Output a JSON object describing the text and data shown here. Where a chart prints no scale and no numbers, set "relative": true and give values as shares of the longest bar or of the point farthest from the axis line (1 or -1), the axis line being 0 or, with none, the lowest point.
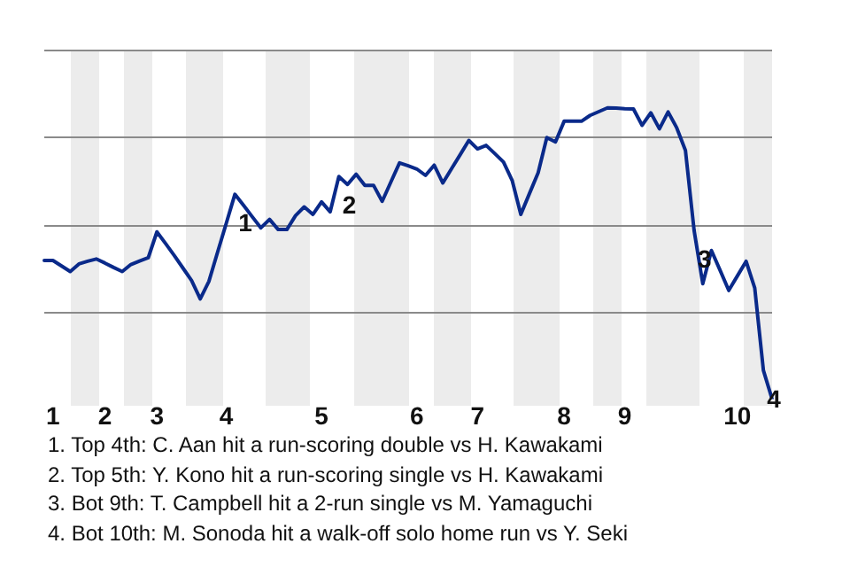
{
  "chart_data": {
    "type": "line",
    "relative": true,
    "grid": "y",
    "legend": false,
    "tick_labels": "x",
    "marker": "none",
    "line_style": "solid",
    "categories": [
      null,
      "1",
      null,
      null,
      null,
      null,
      null,
      "2",
      null,
      null,
      null,
      null,
      null,
      "3",
      null,
      null,
      null,
      null,
      null,
      null,
      null,
      "4",
      null,
      null,
      null,
      null,
      null,
      null,
      null,
      null,
      null,
      null,
      "5",
      null,
      null,
      null,
      null,
      null,
      null,
      null,
      null,
      null,
      null,
      "6",
      null,
      null,
      null,
      null,
      null,
      null,
      "7",
      null,
      null,
      null,
      null,
      null,
      null,
      null,
      null,
      null,
      "8",
      null,
      null,
      null,
      null,
      null,
      null,
      "9",
      null,
      null,
      null,
      null,
      null,
      null,
      null,
      null,
      null,
      null,
      null,
      null,
      "10",
      null,
      null,
      null,
      null
    ],
    "series": [
      {
        "color": "#0a2a8a",
        "values": [
          0.476,
          0.476,
          0.457,
          0.438,
          0.464,
          0.473,
          0.481,
          0.467,
          0.452,
          0.438,
          0.462,
          0.474,
          0.485,
          0.574,
          0.534,
          0.493,
          0.45,
          0.407,
          0.344,
          0.404,
          0.504,
          0.603,
          0.703,
          0.665,
          0.626,
          0.588,
          0.617,
          0.582,
          0.582,
          0.63,
          0.66,
          0.634,
          0.677,
          0.643,
          0.764,
          0.737,
          0.772,
          0.734,
          0.734,
          0.679,
          0.745,
          0.811,
          0.801,
          0.79,
          0.768,
          0.803,
          0.742,
          0.791,
          0.839,
          0.888,
          0.859,
          0.871,
          0.843,
          0.814,
          0.751,
          0.634,
          0.706,
          0.777,
          0.898,
          0.883,
          0.954,
          0.954,
          0.954,
          0.974,
          0.987,
          1.0,
          0.999,
          0.997,
          0.996,
          0.94,
          0.983,
          0.928,
          0.986,
          0.931,
          0.854,
          0.579,
          0.396,
          0.51,
          0.442,
          0.373,
          0.423,
          0.473,
          0.381,
          0.098,
          0.0
        ]
      }
    ],
    "annotations": [
      {
        "text": "1",
        "y": 0.703
      },
      {
        "text": "2",
        "y": 0.764
      },
      {
        "text": "3",
        "y": 0.579
      },
      {
        "text": "4",
        "y": 0.098
      },
      "1. Top 4th: C. Aan hit a run-scoring double vs H. Kawakami",
      "2. Top 5th: Y. Kono hit a run-scoring single vs H. Kawakami",
      "3. Bot 9th: T. Campbell hit a 2-run single vs M. Yamaguchi",
      "4. Bot 10th: M. Sonoda hit a walk-off solo home run vs Y. Seki"
    ]
  }
}
